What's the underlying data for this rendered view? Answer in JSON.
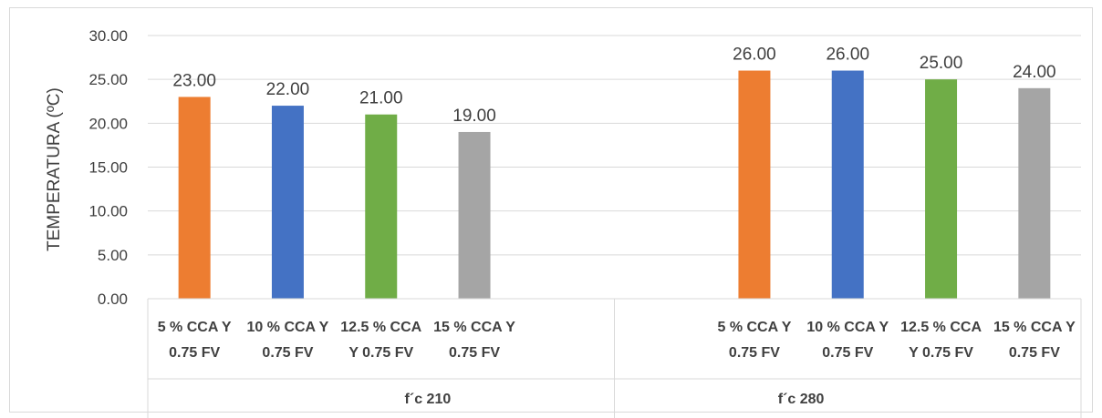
{
  "chart_data": {
    "type": "bar",
    "ylabel": "TEMPERATURA (ºC)",
    "ylim": [
      0,
      30
    ],
    "yticks": [
      "0.00",
      "5.00",
      "10.00",
      "15.00",
      "20.00",
      "25.00",
      "30.00"
    ],
    "grid": true,
    "groups": [
      {
        "name": "f´c 210",
        "bars": [
          {
            "label": [
              "5 % CCA Y",
              "0.75 FV"
            ],
            "value": 23,
            "display": "23.00",
            "color": "#ED7D31"
          },
          {
            "label": [
              "10 % CCA Y",
              "0.75 FV"
            ],
            "value": 22,
            "display": "22.00",
            "color": "#4472C4"
          },
          {
            "label": [
              "12.5 % CCA",
              "Y 0.75 FV"
            ],
            "value": 21,
            "display": "21.00",
            "color": "#70AD47"
          },
          {
            "label": [
              "15 % CCA Y",
              "0.75 FV"
            ],
            "value": 19,
            "display": "19.00",
            "color": "#A5A5A5"
          }
        ]
      },
      {
        "name": "f´c 280",
        "bars": [
          {
            "label": [
              "5 % CCA Y",
              "0.75 FV"
            ],
            "value": 26,
            "display": "26.00",
            "color": "#ED7D31"
          },
          {
            "label": [
              "10 % CCA Y",
              "0.75 FV"
            ],
            "value": 26,
            "display": "26.00",
            "color": "#4472C4"
          },
          {
            "label": [
              "12.5 % CCA",
              "Y 0.75 FV"
            ],
            "value": 25,
            "display": "25.00",
            "color": "#70AD47"
          },
          {
            "label": [
              "15 % CCA Y",
              "0.75 FV"
            ],
            "value": 24,
            "display": "24.00",
            "color": "#A5A5A5"
          }
        ]
      }
    ]
  }
}
